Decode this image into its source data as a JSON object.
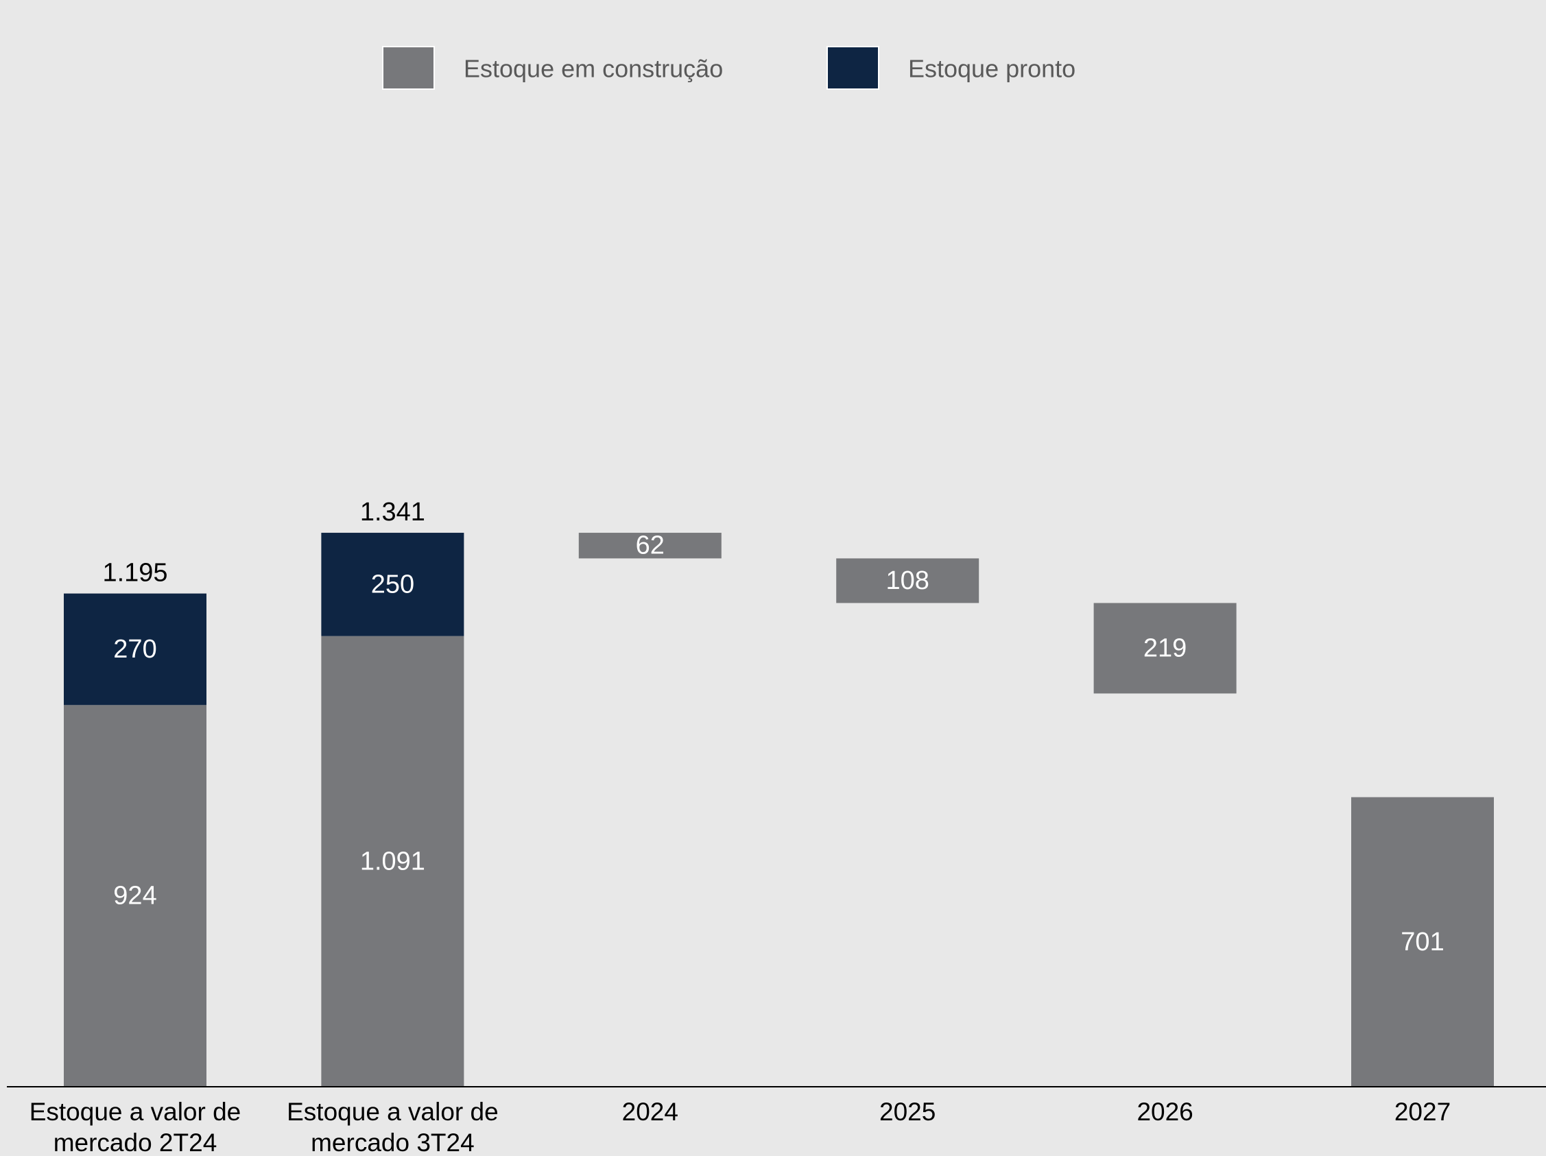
{
  "chart_data": {
    "type": "bar",
    "subtype": "waterfall",
    "categories": [
      [
        "Estoque a valor de",
        "mercado 2T24"
      ],
      [
        "Estoque a valor de",
        "mercado 3T24"
      ],
      [
        "2024"
      ],
      [
        "2025"
      ],
      [
        "2026"
      ],
      [
        "2027"
      ]
    ],
    "series": [
      {
        "name": "Estoque em construção",
        "color": "#77787b"
      },
      {
        "name": "Estoque pronto",
        "color": "#0e2543"
      }
    ],
    "stacked_bars": [
      {
        "category_index": 0,
        "segments": [
          924,
          270
        ],
        "total_label": "1.195",
        "segment_labels": [
          "924",
          "270"
        ]
      },
      {
        "category_index": 1,
        "segments": [
          1091,
          250
        ],
        "total_label": "1.341",
        "segment_labels": [
          "1.091",
          "250"
        ]
      }
    ],
    "waterfall_steps": [
      {
        "category_index": 2,
        "value": 62,
        "label": "62"
      },
      {
        "category_index": 3,
        "value": 108,
        "label": "108"
      },
      {
        "category_index": 4,
        "value": 219,
        "label": "219"
      },
      {
        "category_index": 5,
        "value": 701,
        "label": "701",
        "floor": true
      }
    ],
    "ylim": [
      0,
      1600
    ],
    "grid": false,
    "legend_position": "top"
  }
}
